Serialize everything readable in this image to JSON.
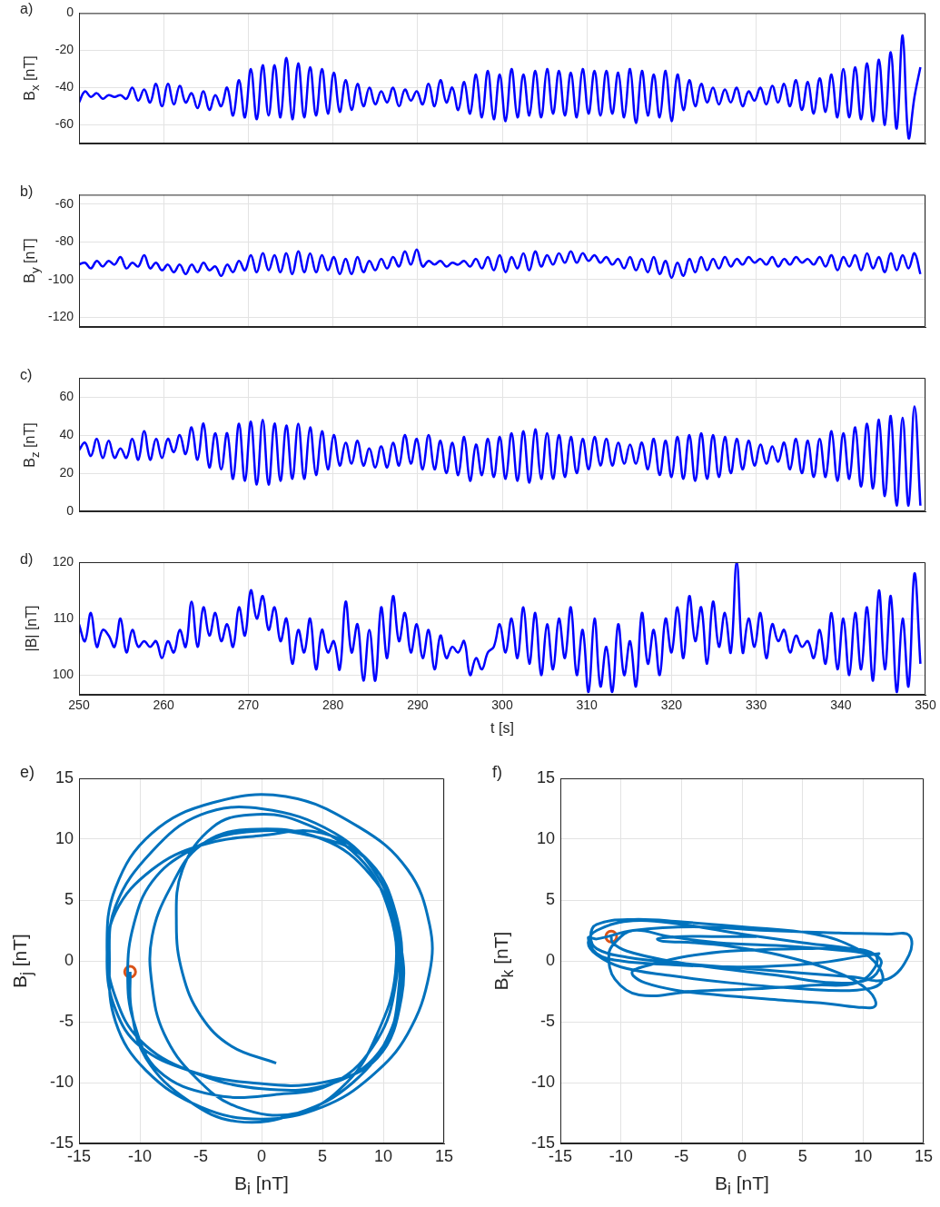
{
  "chart_data": [
    {
      "type": "line",
      "title": "a)",
      "ylabel": "B$_{x}$ [nT]",
      "xlim": [
        250,
        350
      ],
      "xticks": [
        250,
        260,
        270,
        280,
        290,
        300,
        310,
        320,
        330,
        340,
        350
      ],
      "ylim": [
        -70,
        0
      ],
      "yticks": [
        -60,
        -40,
        -20,
        0
      ],
      "grid": true,
      "tick_labels": "y",
      "x": [
        250,
        250.7,
        251.4,
        252.1,
        252.8,
        253.5,
        254.2,
        254.9,
        255.6,
        256.3,
        257,
        257.7,
        258.4,
        259.1,
        259.8,
        260.5,
        261.2,
        261.9,
        262.6,
        263.3,
        264,
        264.7,
        265.4,
        266.1,
        266.8,
        267.5,
        268.2,
        268.9,
        269.6,
        270.3,
        271,
        271.7,
        272.4,
        273.1,
        273.8,
        274.5,
        275.2,
        275.9,
        276.6,
        277.3,
        278,
        278.7,
        279.4,
        280.1,
        280.8,
        281.5,
        282.2,
        282.9,
        283.6,
        284.3,
        285,
        285.7,
        286.4,
        287.1,
        287.8,
        288.5,
        289.2,
        289.9,
        290.6,
        291.3,
        292,
        292.7,
        293.4,
        294.1,
        294.8,
        295.5,
        296.2,
        296.9,
        297.6,
        298.3,
        299,
        299.7,
        300.4,
        301.1,
        301.8,
        302.5,
        303.2,
        303.9,
        304.6,
        305.3,
        306,
        306.7,
        307.4,
        308.1,
        308.8,
        309.5,
        310.2,
        310.9,
        311.6,
        312.3,
        313,
        313.7,
        314.4,
        315.1,
        315.8,
        316.5,
        317.2,
        317.9,
        318.6,
        319.3,
        320,
        320.7,
        321.4,
        322.1,
        322.8,
        323.5,
        324.2,
        324.9,
        325.6,
        326.3,
        327,
        327.7,
        328.4,
        329.1,
        329.8,
        330.5,
        331.2,
        331.9,
        332.6,
        333.3,
        334,
        334.7,
        335.4,
        336.1,
        336.8,
        337.5,
        338.2,
        338.9,
        339.6,
        340.3,
        341,
        341.7,
        342.4,
        343.1,
        343.8,
        344.5,
        345.2,
        345.9,
        346.6,
        347.3,
        348,
        348.7,
        349.4
      ],
      "series": [
        {
          "color": "#0000ff",
          "values": [
            -48,
            -42,
            -45,
            -43,
            -46,
            -44,
            -45,
            -44,
            -46,
            -40,
            -47,
            -41,
            -48,
            -38,
            -50,
            -38,
            -49,
            -39,
            -48,
            -43,
            -51,
            -42,
            -52,
            -44,
            -50,
            -40,
            -55,
            -36,
            -56,
            -30,
            -57,
            -28,
            -55,
            -28,
            -56,
            -24,
            -57,
            -27,
            -56,
            -29,
            -55,
            -30,
            -54,
            -32,
            -53,
            -36,
            -52,
            -38,
            -50,
            -40,
            -49,
            -42,
            -48,
            -40,
            -50,
            -41,
            -47,
            -42,
            -49,
            -38,
            -50,
            -36,
            -48,
            -40,
            -52,
            -37,
            -54,
            -33,
            -56,
            -31,
            -57,
            -33,
            -58,
            -30,
            -56,
            -33,
            -55,
            -31,
            -56,
            -30,
            -54,
            -31,
            -55,
            -32,
            -56,
            -30,
            -54,
            -31,
            -55,
            -31,
            -54,
            -32,
            -56,
            -30,
            -59,
            -31,
            -55,
            -33,
            -56,
            -31,
            -58,
            -33,
            -52,
            -36,
            -50,
            -38,
            -48,
            -40,
            -49,
            -41,
            -48,
            -40,
            -50,
            -42,
            -47,
            -40,
            -49,
            -39,
            -48,
            -38,
            -50,
            -36,
            -52,
            -37,
            -54,
            -35,
            -53,
            -33,
            -56,
            -30,
            -56,
            -29,
            -57,
            -27,
            -58,
            -25,
            -60,
            -21,
            -62,
            -12,
            -67,
            -45,
            -29
          ]
        }
      ]
    },
    {
      "type": "line",
      "title": "b)",
      "ylabel": "B$_{y}$ [nT]",
      "xlim": [
        250,
        350
      ],
      "xticks": [
        250,
        260,
        270,
        280,
        290,
        300,
        310,
        320,
        330,
        340,
        350
      ],
      "ylim": [
        -125,
        -55
      ],
      "yticks": [
        -120,
        -100,
        -80,
        -60
      ],
      "grid": true,
      "tick_labels": "y",
      "x": [
        250,
        250.7,
        251.4,
        252.1,
        252.8,
        253.5,
        254.2,
        254.9,
        255.6,
        256.3,
        257,
        257.7,
        258.4,
        259.1,
        259.8,
        260.5,
        261.2,
        261.9,
        262.6,
        263.3,
        264,
        264.7,
        265.4,
        266.1,
        266.8,
        267.5,
        268.2,
        268.9,
        269.6,
        270.3,
        271,
        271.7,
        272.4,
        273.1,
        273.8,
        274.5,
        275.2,
        275.9,
        276.6,
        277.3,
        278,
        278.7,
        279.4,
        280.1,
        280.8,
        281.5,
        282.2,
        282.9,
        283.6,
        284.3,
        285,
        285.7,
        286.4,
        287.1,
        287.8,
        288.5,
        289.2,
        289.9,
        290.6,
        291.3,
        292,
        292.7,
        293.4,
        294.1,
        294.8,
        295.5,
        296.2,
        296.9,
        297.6,
        298.3,
        299,
        299.7,
        300.4,
        301.1,
        301.8,
        302.5,
        303.2,
        303.9,
        304.6,
        305.3,
        306,
        306.7,
        307.4,
        308.1,
        308.8,
        309.5,
        310.2,
        310.9,
        311.6,
        312.3,
        313,
        313.7,
        314.4,
        315.1,
        315.8,
        316.5,
        317.2,
        317.9,
        318.6,
        319.3,
        320,
        320.7,
        321.4,
        322.1,
        322.8,
        323.5,
        324.2,
        324.9,
        325.6,
        326.3,
        327,
        327.7,
        328.4,
        329.1,
        329.8,
        330.5,
        331.2,
        331.9,
        332.6,
        333.3,
        334,
        334.7,
        335.4,
        336.1,
        336.8,
        337.5,
        338.2,
        338.9,
        339.6,
        340.3,
        341,
        341.7,
        342.4,
        343.1,
        343.8,
        344.5,
        345.2,
        345.9,
        346.6,
        347.3,
        348,
        348.7,
        349.4
      ],
      "series": [
        {
          "color": "#0000ff",
          "values": [
            -92,
            -91,
            -94,
            -90,
            -93,
            -90,
            -92,
            -88,
            -94,
            -91,
            -93,
            -87,
            -94,
            -91,
            -95,
            -92,
            -96,
            -92,
            -97,
            -92,
            -96,
            -91,
            -95,
            -93,
            -98,
            -92,
            -96,
            -90,
            -95,
            -87,
            -96,
            -86,
            -95,
            -87,
            -96,
            -86,
            -97,
            -85,
            -96,
            -86,
            -96,
            -87,
            -95,
            -88,
            -97,
            -89,
            -97,
            -88,
            -96,
            -90,
            -95,
            -89,
            -94,
            -88,
            -93,
            -85,
            -92,
            -84,
            -93,
            -90,
            -92,
            -90,
            -93,
            -91,
            -92,
            -90,
            -93,
            -89,
            -94,
            -88,
            -95,
            -87,
            -96,
            -88,
            -94,
            -86,
            -95,
            -85,
            -93,
            -87,
            -92,
            -86,
            -91,
            -85,
            -91,
            -86,
            -90,
            -87,
            -91,
            -88,
            -92,
            -89,
            -94,
            -88,
            -95,
            -89,
            -96,
            -88,
            -97,
            -90,
            -99,
            -91,
            -98,
            -89,
            -96,
            -88,
            -95,
            -89,
            -94,
            -88,
            -93,
            -89,
            -92,
            -88,
            -91,
            -89,
            -92,
            -88,
            -93,
            -89,
            -92,
            -88,
            -91,
            -89,
            -92,
            -88,
            -93,
            -87,
            -95,
            -88,
            -93,
            -87,
            -95,
            -86,
            -94,
            -88,
            -96,
            -86,
            -95,
            -87,
            -94,
            -86,
            -97
          ]
        }
      ]
    },
    {
      "type": "line",
      "title": "c)",
      "ylabel": "B$_{z}$ [nT]",
      "xlim": [
        250,
        350
      ],
      "xticks": [
        250,
        260,
        270,
        280,
        290,
        300,
        310,
        320,
        330,
        340,
        350
      ],
      "ylim": [
        0,
        70
      ],
      "yticks": [
        0,
        20,
        40,
        60
      ],
      "grid": true,
      "tick_labels": "y",
      "x": [
        250,
        250.7,
        251.4,
        252.1,
        252.8,
        253.5,
        254.2,
        254.9,
        255.6,
        256.3,
        257,
        257.7,
        258.4,
        259.1,
        259.8,
        260.5,
        261.2,
        261.9,
        262.6,
        263.3,
        264,
        264.7,
        265.4,
        266.1,
        266.8,
        267.5,
        268.2,
        268.9,
        269.6,
        270.3,
        271,
        271.7,
        272.4,
        273.1,
        273.8,
        274.5,
        275.2,
        275.9,
        276.6,
        277.3,
        278,
        278.7,
        279.4,
        280.1,
        280.8,
        281.5,
        282.2,
        282.9,
        283.6,
        284.3,
        285,
        285.7,
        286.4,
        287.1,
        287.8,
        288.5,
        289.2,
        289.9,
        290.6,
        291.3,
        292,
        292.7,
        293.4,
        294.1,
        294.8,
        295.5,
        296.2,
        296.9,
        297.6,
        298.3,
        299,
        299.7,
        300.4,
        301.1,
        301.8,
        302.5,
        303.2,
        303.9,
        304.6,
        305.3,
        306,
        306.7,
        307.4,
        308.1,
        308.8,
        309.5,
        310.2,
        310.9,
        311.6,
        312.3,
        313,
        313.7,
        314.4,
        315.1,
        315.8,
        316.5,
        317.2,
        317.9,
        318.6,
        319.3,
        320,
        320.7,
        321.4,
        322.1,
        322.8,
        323.5,
        324.2,
        324.9,
        325.6,
        326.3,
        327,
        327.7,
        328.4,
        329.1,
        329.8,
        330.5,
        331.2,
        331.9,
        332.6,
        333.3,
        334,
        334.7,
        335.4,
        336.1,
        336.8,
        337.5,
        338.2,
        338.9,
        339.6,
        340.3,
        341,
        341.7,
        342.4,
        343.1,
        343.8,
        344.5,
        345.2,
        345.9,
        346.6,
        347.3,
        348,
        348.7,
        349.4
      ],
      "series": [
        {
          "color": "#0000ff",
          "values": [
            32,
            36,
            29,
            38,
            28,
            37,
            28,
            33,
            28,
            38,
            27,
            42,
            27,
            38,
            28,
            38,
            31,
            40,
            30,
            44,
            27,
            46,
            23,
            41,
            22,
            41,
            17,
            46,
            16,
            47,
            14,
            48,
            14,
            46,
            16,
            45,
            17,
            46,
            17,
            44,
            19,
            42,
            22,
            40,
            24,
            36,
            25,
            37,
            24,
            33,
            23,
            34,
            23,
            36,
            24,
            40,
            25,
            38,
            22,
            40,
            22,
            37,
            20,
            36,
            19,
            39,
            16,
            35,
            19,
            38,
            18,
            39,
            17,
            41,
            16,
            42,
            15,
            43,
            17,
            41,
            17,
            40,
            18,
            39,
            20,
            38,
            22,
            39,
            24,
            38,
            24,
            36,
            25,
            35,
            25,
            36,
            22,
            38,
            19,
            37,
            18,
            39,
            17,
            40,
            16,
            41,
            17,
            40,
            18,
            39,
            20,
            38,
            22,
            37,
            24,
            35,
            25,
            34,
            26,
            36,
            22,
            38,
            20,
            37,
            18,
            38,
            18,
            42,
            16,
            41,
            17,
            44,
            13,
            46,
            12,
            48,
            8,
            50,
            3,
            49,
            3,
            55,
            3
          ]
        }
      ]
    },
    {
      "type": "line",
      "title": "d)",
      "xlabel": "t [s]",
      "ylabel": "|B| [nT]",
      "xlim": [
        250,
        350
      ],
      "xticks": [
        250,
        260,
        270,
        280,
        290,
        300,
        310,
        320,
        330,
        340,
        350
      ],
      "ylim": [
        96.5,
        120
      ],
      "yticks": [
        100,
        110,
        120
      ],
      "grid": true,
      "x": [
        250,
        250.7,
        251.4,
        252.1,
        252.8,
        253.5,
        254.2,
        254.9,
        255.6,
        256.3,
        257,
        257.7,
        258.4,
        259.1,
        259.8,
        260.5,
        261.2,
        261.9,
        262.6,
        263.3,
        264,
        264.7,
        265.4,
        266.1,
        266.8,
        267.5,
        268.2,
        268.9,
        269.6,
        270.3,
        271,
        271.7,
        272.4,
        273.1,
        273.8,
        274.5,
        275.2,
        275.9,
        276.6,
        277.3,
        278,
        278.7,
        279.4,
        280.1,
        280.8,
        281.5,
        282.2,
        282.9,
        283.6,
        284.3,
        285,
        285.7,
        286.4,
        287.1,
        287.8,
        288.5,
        289.2,
        289.9,
        290.6,
        291.3,
        292,
        292.7,
        293.4,
        294.1,
        294.8,
        295.5,
        296.2,
        296.9,
        297.6,
        298.3,
        299,
        299.7,
        300.4,
        301.1,
        301.8,
        302.5,
        303.2,
        303.9,
        304.6,
        305.3,
        306,
        306.7,
        307.4,
        308.1,
        308.8,
        309.5,
        310.2,
        310.9,
        311.6,
        312.3,
        313,
        313.7,
        314.4,
        315.1,
        315.8,
        316.5,
        317.2,
        317.9,
        318.6,
        319.3,
        320,
        320.7,
        321.4,
        322.1,
        322.8,
        323.5,
        324.2,
        324.9,
        325.6,
        326.3,
        327,
        327.7,
        328.4,
        329.1,
        329.8,
        330.5,
        331.2,
        331.9,
        332.6,
        333.3,
        334,
        334.7,
        335.4,
        336.1,
        336.8,
        337.5,
        338.2,
        338.9,
        339.6,
        340.3,
        341,
        341.7,
        342.4,
        343.1,
        343.8,
        344.5,
        345.2,
        345.9,
        346.6,
        347.3,
        348,
        348.7,
        349.4
      ],
      "series": [
        {
          "color": "#0000ff",
          "values": [
            109,
            106,
            111,
            105,
            108,
            107,
            105,
            110,
            104,
            108,
            105,
            106,
            105,
            106,
            103,
            106,
            104,
            108,
            105,
            113,
            105,
            112,
            107,
            111,
            106,
            109,
            105,
            112,
            107,
            115,
            110,
            114,
            108,
            112,
            106,
            110,
            102,
            108,
            104,
            110,
            101,
            108,
            104,
            106,
            101,
            113,
            104,
            109,
            99,
            108,
            99,
            112,
            103,
            114,
            106,
            111,
            104,
            109,
            103,
            108,
            101,
            107,
            103,
            105,
            104,
            106,
            100,
            103,
            101,
            104,
            105,
            109,
            104,
            110,
            103,
            112,
            102,
            111,
            100,
            109,
            101,
            110,
            103,
            112,
            100,
            108,
            97,
            110,
            98,
            105,
            97,
            109,
            100,
            106,
            98,
            111,
            102,
            108,
            100,
            110,
            104,
            112,
            103,
            114,
            106,
            112,
            102,
            113,
            105,
            111,
            104,
            120,
            104,
            110,
            105,
            111,
            103,
            109,
            106,
            108,
            104,
            107,
            105,
            106,
            103,
            108,
            102,
            111,
            101,
            110,
            100,
            111,
            101,
            112,
            99,
            115,
            101,
            114,
            97,
            110,
            98,
            118,
            102
          ]
        }
      ]
    },
    {
      "type": "line",
      "title": "e)",
      "xlabel": "B$_{i}$ [nT]",
      "ylabel": "B$_{j}$ [nT]",
      "xlim": [
        -15,
        15
      ],
      "xticks": [
        -15,
        -10,
        -5,
        0,
        5,
        10,
        15
      ],
      "ylim": [
        -15,
        15
      ],
      "yticks": [
        -15,
        -10,
        -5,
        0,
        5,
        10,
        15
      ],
      "grid": true,
      "x": [
        -10.8,
        -10.7,
        -9.5,
        -6,
        -2,
        3,
        7.5,
        10.5,
        11.5,
        11,
        9,
        5,
        0,
        -5,
        -9,
        -12,
        -12.7,
        -12,
        -10,
        -6,
        -1,
        5,
        9.5,
        11.5,
        11.3,
        9.5,
        6,
        0,
        -5,
        -9,
        -12,
        -12.5,
        -12,
        -9.5,
        -5,
        0,
        5,
        9,
        12,
        13.8,
        13.8,
        12,
        8,
        2,
        -4,
        -9,
        -12,
        -12.7,
        -12,
        -10,
        -6,
        0,
        6,
        10,
        11.3,
        11,
        9,
        4,
        -2,
        -6,
        -9,
        -10.5,
        -11,
        -10.5,
        -8.5,
        -4,
        1,
        6,
        9.5,
        11,
        11,
        9,
        5,
        -1,
        -5,
        -7.5,
        -9,
        -9,
        -8,
        -5.5,
        -2,
        3,
        7,
        9.5,
        11,
        10.5,
        8,
        3,
        -1,
        -4,
        -6.5,
        -7,
        -6.5,
        -5,
        -2.5,
        1.2
      ],
      "series": [
        {
          "color": "#0072bd",
          "values": [
            -0.9,
            -4,
            -8,
            -11.5,
            -13.2,
            -12.5,
            -10,
            -6,
            -1,
            4,
            8,
            10.5,
            10.3,
            9.5,
            7.5,
            4,
            0,
            -4,
            -7,
            -9,
            -10,
            -10,
            -8,
            -3,
            2,
            7,
            10.5,
            12.5,
            12,
            9,
            4.5,
            0,
            -5,
            -9,
            -12,
            -13,
            -12,
            -9.5,
            -6,
            -1,
            3,
            7.5,
            11,
            13.5,
            13,
            10.5,
            6,
            1,
            -3,
            -6.5,
            -9,
            -10.5,
            -10,
            -7,
            -2,
            3,
            8,
            10.3,
            10.5,
            9,
            6.5,
            3,
            -1,
            -5,
            -9,
            -11,
            -11,
            -10,
            -6.5,
            -2,
            3,
            7,
            10,
            10.8,
            9.5,
            6,
            2,
            -2,
            -6,
            -9.5,
            -12,
            -12.5,
            -10,
            -6,
            -1,
            4,
            8.5,
            11.5,
            12,
            11,
            7.5,
            3,
            -1,
            -4.5,
            -7,
            -8.4
          ]
        },
        {
          "type": "scatter",
          "marker": "circle",
          "color": "#d95319",
          "x": [
            -10.8
          ],
          "values": [
            -0.9
          ]
        }
      ]
    },
    {
      "type": "line",
      "title": "f)",
      "xlabel": "B$_{i}$ [nT]",
      "ylabel": "B$_{k}$ [nT]",
      "xlim": [
        -15,
        15
      ],
      "xticks": [
        -15,
        -10,
        -5,
        0,
        5,
        10,
        15
      ],
      "ylim": [
        -15,
        15
      ],
      "yticks": [
        -15,
        -10,
        -5,
        0,
        5,
        10,
        15
      ],
      "grid": true,
      "x": [
        -10.8,
        -10.7,
        -9.5,
        -6,
        -2,
        3,
        7.5,
        10.5,
        11.5,
        11,
        9,
        5,
        0,
        -5,
        -9,
        -12,
        -12.7,
        -12,
        -10,
        -6,
        -1,
        5,
        9.5,
        11.5,
        11.3,
        9.5,
        6,
        0,
        -5,
        -9,
        -12,
        -12.5,
        -12,
        -9.5,
        -5,
        0,
        5,
        9,
        12,
        13.8,
        13.8,
        12,
        8,
        2,
        -4,
        -9,
        -12,
        -12.7,
        -12,
        -10,
        -6,
        0,
        6,
        10,
        11.3,
        11,
        9,
        4,
        -2,
        -6,
        -9,
        -10.5,
        -11,
        -10.5,
        -8.5,
        -4,
        1,
        6,
        9.5,
        11,
        11,
        9,
        5,
        -1,
        -5,
        -7.5,
        -9,
        -9,
        -8,
        -5.5,
        -2,
        3,
        7,
        9.5,
        11,
        10.5,
        8,
        3,
        -1,
        -4,
        -6.5,
        -7,
        -6.5,
        -5,
        -2.5,
        1.2
      ],
      "series": [
        {
          "color": "#0072bd",
          "values": [
            2,
            1.5,
            0.8,
            0,
            -0.6,
            -1.2,
            -1.8,
            -1.5,
            -0.2,
            0.5,
            1,
            1.5,
            2.2,
            3,
            3.3,
            2.5,
            1.5,
            0.5,
            -0.5,
            -1.2,
            -1.8,
            -2.3,
            -2.4,
            -1.8,
            -0.5,
            1,
            2.2,
            2.8,
            3.2,
            3.4,
            3,
            2,
            1,
            0.3,
            -0.2,
            -0.6,
            -1,
            -1.3,
            -1.5,
            0.5,
            2.1,
            2.2,
            2.3,
            2.5,
            2.8,
            2.5,
            1.8,
            1.9,
            0.6,
            0,
            -0.3,
            -0.5,
            -0.2,
            0.4,
            0.6,
            0.5,
            0.8,
            1.2,
            1.5,
            2,
            2.5,
            1.5,
            0.5,
            -1.5,
            -2.8,
            -2.5,
            -2.3,
            -2,
            -1.8,
            -0.5,
            0.5,
            1,
            1,
            0.8,
            0.3,
            -0.3,
            -0.8,
            -1.2,
            -1.8,
            -2.4,
            -2.8,
            -3.2,
            -3.5,
            -3.8,
            -3.7,
            -2.5,
            -1,
            0.5,
            1.2,
            1.5,
            1.6,
            1.8,
            1.9,
            2,
            2,
            2
          ]
        },
        {
          "type": "scatter",
          "marker": "circle",
          "color": "#d95319",
          "x": [
            -10.8
          ],
          "values": [
            2
          ]
        }
      ]
    }
  ]
}
